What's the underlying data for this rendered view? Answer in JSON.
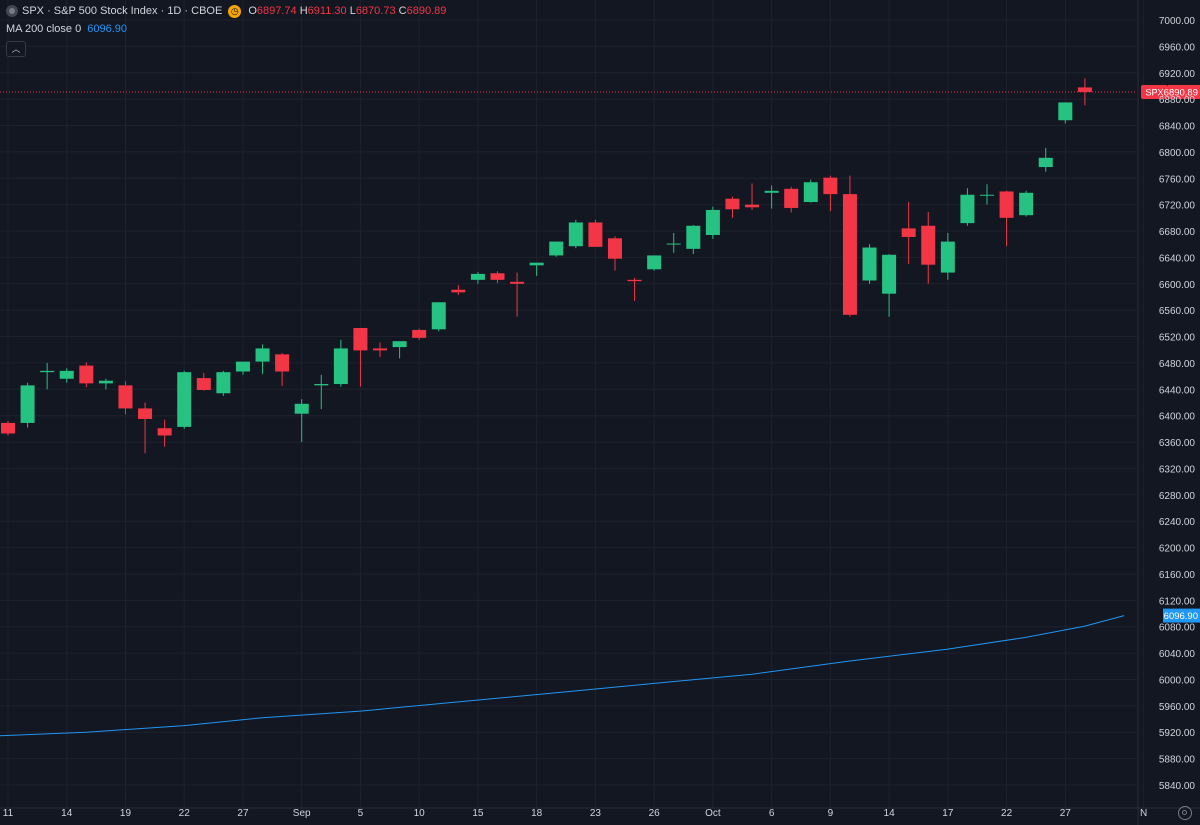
{
  "header": {
    "title": "SPX · S&P 500 Stock Index · 1D · CBOE",
    "ohlc": {
      "o_label": "O",
      "o": "6897.74",
      "h_label": "H",
      "h": "6911.30",
      "l_label": "L",
      "l": "6870.73",
      "c_label": "C",
      "c": "6890.89"
    },
    "ma_label": "MA 200 close 0",
    "ma_value": "6096.90"
  },
  "icons": {
    "symbol": "symbol-badge-icon",
    "clock": "clock-icon",
    "collapse": "chevron-up-icon",
    "settings": "gear-icon"
  },
  "colors": {
    "up": "#22ab94",
    "up_fill": "#26c281",
    "down": "#f23645",
    "ma": "#2196f3",
    "background": "#131722",
    "grid": "#1e222d",
    "text": "#d1d4dc"
  },
  "chart_data": {
    "type": "candlestick",
    "title": "SPX · S&P 500 Stock Index · 1D · CBOE",
    "xlabel": "",
    "ylabel": "",
    "ylim": [
      5820,
      7010
    ],
    "y_ticks": [
      "7000.00",
      "6960.00",
      "6920.00",
      "6880.00",
      "6840.00",
      "6800.00",
      "6760.00",
      "6720.00",
      "6680.00",
      "6640.00",
      "6600.00",
      "6560.00",
      "6520.00",
      "6480.00",
      "6440.00",
      "6400.00",
      "6360.00",
      "6320.00",
      "6280.00",
      "6240.00",
      "6200.00",
      "6160.00",
      "6120.00",
      "6080.00",
      "6040.00",
      "6000.00",
      "5960.00",
      "5920.00",
      "5880.00",
      "5840.00"
    ],
    "x_ticks": [
      {
        "label": "11",
        "i": 0
      },
      {
        "label": "14",
        "i": 3
      },
      {
        "label": "19",
        "i": 6
      },
      {
        "label": "22",
        "i": 9
      },
      {
        "label": "27",
        "i": 12
      },
      {
        "label": "Sep",
        "i": 15
      },
      {
        "label": "5",
        "i": 18
      },
      {
        "label": "10",
        "i": 21
      },
      {
        "label": "15",
        "i": 24
      },
      {
        "label": "18",
        "i": 27
      },
      {
        "label": "23",
        "i": 30
      },
      {
        "label": "26",
        "i": 33
      },
      {
        "label": "Oct",
        "i": 36
      },
      {
        "label": "6",
        "i": 39
      },
      {
        "label": "9",
        "i": 42
      },
      {
        "label": "14",
        "i": 45
      },
      {
        "label": "17",
        "i": 48
      },
      {
        "label": "22",
        "i": 51
      },
      {
        "label": "27",
        "i": 54
      },
      {
        "label": "N",
        "i": 58
      }
    ],
    "candles": [
      {
        "o": 6389,
        "h": 6392,
        "l": 6370,
        "c": 6373
      },
      {
        "o": 6389,
        "h": 6450,
        "l": 6382,
        "c": 6446
      },
      {
        "o": 6466,
        "h": 6480,
        "l": 6440,
        "c": 6468
      },
      {
        "o": 6456,
        "h": 6472,
        "l": 6450,
        "c": 6468
      },
      {
        "o": 6476,
        "h": 6481,
        "l": 6443,
        "c": 6449
      },
      {
        "o": 6449,
        "h": 6456,
        "l": 6440,
        "c": 6453
      },
      {
        "o": 6446,
        "h": 6452,
        "l": 6402,
        "c": 6411
      },
      {
        "o": 6411,
        "h": 6420,
        "l": 6343,
        "c": 6395
      },
      {
        "o": 6381,
        "h": 6394,
        "l": 6353,
        "c": 6370
      },
      {
        "o": 6383,
        "h": 6468,
        "l": 6380,
        "c": 6466
      },
      {
        "o": 6457,
        "h": 6465,
        "l": 6438,
        "c": 6439
      },
      {
        "o": 6434,
        "h": 6468,
        "l": 6430,
        "c": 6466
      },
      {
        "o": 6467,
        "h": 6481,
        "l": 6462,
        "c": 6482
      },
      {
        "o": 6482,
        "h": 6508,
        "l": 6463,
        "c": 6502
      },
      {
        "o": 6493,
        "h": 6495,
        "l": 6445,
        "c": 6467
      },
      {
        "o": 6403,
        "h": 6425,
        "l": 6360,
        "c": 6418
      },
      {
        "o": 6446,
        "h": 6462,
        "l": 6410,
        "c": 6448
      },
      {
        "o": 6448,
        "h": 6515,
        "l": 6444,
        "c": 6502
      },
      {
        "o": 6533,
        "h": 6533,
        "l": 6444,
        "c": 6499
      },
      {
        "o": 6502,
        "h": 6511,
        "l": 6489,
        "c": 6499
      },
      {
        "o": 6504,
        "h": 6512,
        "l": 6487,
        "c": 6513
      },
      {
        "o": 6530,
        "h": 6532,
        "l": 6515,
        "c": 6518
      },
      {
        "o": 6531,
        "h": 6572,
        "l": 6528,
        "c": 6572
      },
      {
        "o": 6591,
        "h": 6598,
        "l": 6583,
        "c": 6587
      },
      {
        "o": 6606,
        "h": 6618,
        "l": 6600,
        "c": 6615
      },
      {
        "o": 6616,
        "h": 6619,
        "l": 6601,
        "c": 6606
      },
      {
        "o": 6603,
        "h": 6617,
        "l": 6550,
        "c": 6600
      },
      {
        "o": 6628,
        "h": 6632,
        "l": 6612,
        "c": 6632
      },
      {
        "o": 6643,
        "h": 6664,
        "l": 6641,
        "c": 6664
      },
      {
        "o": 6657,
        "h": 6697,
        "l": 6654,
        "c": 6693
      },
      {
        "o": 6693,
        "h": 6697,
        "l": 6657,
        "c": 6656
      },
      {
        "o": 6669,
        "h": 6672,
        "l": 6620,
        "c": 6638
      },
      {
        "o": 6606,
        "h": 6609,
        "l": 6574,
        "c": 6604
      },
      {
        "o": 6622,
        "h": 6643,
        "l": 6620,
        "c": 6643
      },
      {
        "o": 6661,
        "h": 6677,
        "l": 6647,
        "c": 6661
      },
      {
        "o": 6653,
        "h": 6689,
        "l": 6645,
        "c": 6688
      },
      {
        "o": 6674,
        "h": 6717,
        "l": 6668,
        "c": 6712
      },
      {
        "o": 6729,
        "h": 6732,
        "l": 6700,
        "c": 6713
      },
      {
        "o": 6720,
        "h": 6752,
        "l": 6712,
        "c": 6716
      },
      {
        "o": 6738,
        "h": 6749,
        "l": 6714,
        "c": 6741
      },
      {
        "o": 6744,
        "h": 6747,
        "l": 6708,
        "c": 6715
      },
      {
        "o": 6724,
        "h": 6758,
        "l": 6723,
        "c": 6754
      },
      {
        "o": 6761,
        "h": 6764,
        "l": 6710,
        "c": 6736
      },
      {
        "o": 6736,
        "h": 6764,
        "l": 6550,
        "c": 6553
      },
      {
        "o": 6605,
        "h": 6660,
        "l": 6600,
        "c": 6655
      },
      {
        "o": 6585,
        "h": 6645,
        "l": 6550,
        "c": 6644
      },
      {
        "o": 6684,
        "h": 6724,
        "l": 6630,
        "c": 6671
      },
      {
        "o": 6688,
        "h": 6709,
        "l": 6600,
        "c": 6629
      },
      {
        "o": 6617,
        "h": 6677,
        "l": 6606,
        "c": 6664
      },
      {
        "o": 6692,
        "h": 6745,
        "l": 6688,
        "c": 6735
      },
      {
        "o": 6735,
        "h": 6751,
        "l": 6720,
        "c": 6735
      },
      {
        "o": 6740,
        "h": 6741,
        "l": 6657,
        "c": 6700
      },
      {
        "o": 6704,
        "h": 6741,
        "l": 6702,
        "c": 6738
      },
      {
        "o": 6777,
        "h": 6806,
        "l": 6770,
        "c": 6791
      },
      {
        "o": 6848,
        "h": 6875,
        "l": 6843,
        "c": 6875
      },
      {
        "o": 6897.74,
        "h": 6911.3,
        "l": 6870.73,
        "c": 6890.89
      }
    ],
    "ma200": {
      "name": "MA 200 close 0",
      "points": [
        [
          -1,
          5914
        ],
        [
          4,
          5920
        ],
        [
          9,
          5930
        ],
        [
          13,
          5942
        ],
        [
          18,
          5952
        ],
        [
          23,
          5966
        ],
        [
          28,
          5980
        ],
        [
          33,
          5994
        ],
        [
          38,
          6008
        ],
        [
          43,
          6028
        ],
        [
          48,
          6046
        ],
        [
          52,
          6064
        ],
        [
          55,
          6081
        ],
        [
          57,
          6096.9
        ]
      ]
    },
    "last_price_label": {
      "symbol": "SPX",
      "value": "6890.89",
      "y": 6890.89
    },
    "ma_price_label": {
      "value": "6096.90",
      "y": 6096.9
    }
  }
}
